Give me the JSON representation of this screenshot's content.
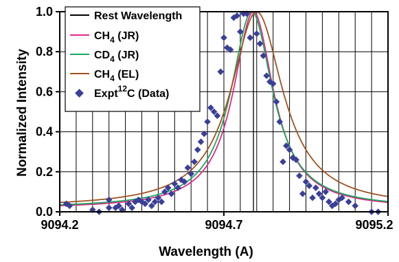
{
  "chart_data": {
    "type": "line",
    "title": "",
    "xlabel": "Wavelength (A)",
    "ylabel": "Normalized Intensity",
    "xlim": [
      9094.2,
      9095.2
    ],
    "ylim": [
      0.0,
      1.0
    ],
    "x_ticks": [
      "9094.2",
      "9094.7",
      "9095.2"
    ],
    "y_ticks": [
      "0.0",
      "0.2",
      "0.4",
      "0.6",
      "0.8",
      "1.0"
    ],
    "grid": true,
    "legend_position": "top-left",
    "rest_wavelength": 9094.79,
    "legend": [
      {
        "key": "rest",
        "label": "Rest Wavelength",
        "color": "#000000"
      },
      {
        "key": "ch4_jr",
        "label": "CH4 (JR)",
        "label_main": "CH",
        "label_sub": "4",
        "label_tail": " (JR)",
        "color": "#e0288c"
      },
      {
        "key": "cd4_jr",
        "label": "CD4 (JR)",
        "label_main": "CD",
        "label_sub": "4",
        "label_tail": " (JR)",
        "color": "#1aa85a"
      },
      {
        "key": "ch4_el",
        "label": "CH4 (EL)",
        "label_main": "CH",
        "label_sub": "4",
        "label_tail": " (EL)",
        "color": "#a0521e"
      },
      {
        "key": "expt",
        "label": "Expt12C (Data)",
        "label_main": "Expt",
        "label_sup": "12",
        "label_tail": "C (Data)",
        "color": "#3a3f98"
      }
    ],
    "series": [
      {
        "name": "CH4 (JR)",
        "type": "line",
        "color": "#e0288c",
        "center": 9094.79,
        "width": 0.075,
        "floor": 0.015
      },
      {
        "name": "CD4 (JR)",
        "type": "line",
        "color": "#1aa85a",
        "center": 9094.785,
        "width": 0.078,
        "floor": 0.018
      },
      {
        "name": "CH4 (EL)",
        "type": "line",
        "color": "#a0521e",
        "center": 9094.8,
        "width": 0.097,
        "floor": 0.022
      },
      {
        "name": "Expt12C (Data)",
        "type": "scatter",
        "color": "#3a3f98",
        "x": [
          9094.22,
          9094.23,
          9094.3,
          9094.32,
          9094.35,
          9094.35,
          9094.37,
          9094.38,
          9094.39,
          9094.41,
          9094.42,
          9094.43,
          9094.44,
          9094.45,
          9094.46,
          9094.47,
          9094.48,
          9094.49,
          9094.5,
          9094.51,
          9094.52,
          9094.53,
          9094.54,
          9094.55,
          9094.56,
          9094.57,
          9094.58,
          9094.59,
          9094.6,
          9094.61,
          9094.62,
          9094.63,
          9094.64,
          9094.65,
          9094.66,
          9094.67,
          9094.68,
          9094.69,
          9094.7,
          9094.71,
          9094.72,
          9094.73,
          9094.74,
          9094.75,
          9094.76,
          9094.77,
          9094.78,
          9094.8,
          9094.81,
          9094.82,
          9094.83,
          9094.84,
          9094.85,
          9094.86,
          9094.87,
          9094.88,
          9094.89,
          9094.9,
          9094.91,
          9094.92,
          9094.93,
          9094.94,
          9094.95,
          9094.96,
          9094.97,
          9094.98,
          9094.99,
          9095.0,
          9095.01,
          9095.02,
          9095.03,
          9095.04,
          9095.05,
          9095.06,
          9095.08,
          9095.1,
          9095.15,
          9095.17
        ],
        "y": [
          0.04,
          0.03,
          0.01,
          0.0,
          0.02,
          0.06,
          0.02,
          0.03,
          0.01,
          0.04,
          0.02,
          0.05,
          0.06,
          0.05,
          0.04,
          0.06,
          0.03,
          0.05,
          0.07,
          0.05,
          0.1,
          0.12,
          0.09,
          0.14,
          0.12,
          0.16,
          0.15,
          0.22,
          0.19,
          0.25,
          0.31,
          0.35,
          0.39,
          0.45,
          0.52,
          0.5,
          0.48,
          0.7,
          0.87,
          0.82,
          0.81,
          0.97,
          0.98,
          0.9,
          0.99,
          0.99,
          0.87,
          0.89,
          0.84,
          0.78,
          0.68,
          0.65,
          0.64,
          0.55,
          0.45,
          0.25,
          0.33,
          0.31,
          0.27,
          0.26,
          0.18,
          0.09,
          0.15,
          0.13,
          0.07,
          0.12,
          0.09,
          0.07,
          0.1,
          0.05,
          0.03,
          0.04,
          0.06,
          0.07,
          0.05,
          0.03,
          0.0,
          0.0
        ]
      }
    ]
  }
}
